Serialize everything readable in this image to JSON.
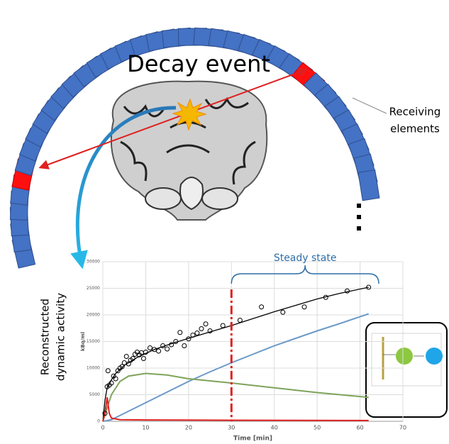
{
  "diagram": {
    "decay_label": "Decay event",
    "receiver_label": [
      "Receiving",
      "elements"
    ],
    "activity_label": [
      "Reconstructed",
      "dynamic activity"
    ]
  },
  "chart_data": {
    "type": "line",
    "steady_state_label": "Steady state",
    "steady_state_start": 30,
    "xlabel": "Time [min]",
    "ylabel": "kBq/ml",
    "xlim": [
      0,
      70
    ],
    "ylim": [
      0,
      30000
    ],
    "xticks": [
      0,
      10,
      20,
      30,
      40,
      50,
      60,
      70
    ],
    "yticks": [
      0,
      5000,
      10000,
      15000,
      20000,
      25000,
      30000
    ],
    "grid": true,
    "series": [
      {
        "color": "#000000",
        "x": [
          0,
          0.5,
          1,
          2,
          3,
          5,
          8,
          12,
          16,
          20,
          25,
          30,
          35,
          40,
          45,
          50,
          55,
          62
        ],
        "values": [
          0,
          4000,
          6300,
          7800,
          9000,
          10500,
          12000,
          13500,
          14600,
          15600,
          16800,
          18000,
          19300,
          20600,
          21800,
          23000,
          24000,
          25200
        ]
      },
      {
        "color": "#6b9ac8",
        "x": [
          0,
          2,
          5,
          10,
          15,
          20,
          25,
          30,
          35,
          40,
          45,
          50,
          55,
          62
        ],
        "values": [
          0,
          300,
          1500,
          3500,
          5500,
          7500,
          9300,
          11000,
          12600,
          14200,
          15600,
          17000,
          18300,
          20200
        ]
      },
      {
        "color": "#7ea35a",
        "x": [
          0,
          1,
          2,
          4,
          6,
          10,
          15,
          20,
          30,
          40,
          50,
          62
        ],
        "values": [
          0,
          2500,
          5000,
          7500,
          8500,
          9000,
          8700,
          8000,
          7200,
          6300,
          5400,
          4500
        ]
      },
      {
        "color": "#e02020",
        "x": [
          0,
          0.5,
          1,
          1.5,
          2,
          4,
          10,
          30,
          62
        ],
        "values": [
          0,
          1500,
          4500,
          1500,
          600,
          300,
          250,
          200,
          150
        ]
      }
    ],
    "points": {
      "color": "#000000",
      "x": [
        0.5,
        1,
        1.2,
        1.5,
        2,
        2.5,
        3,
        3.5,
        4,
        4.5,
        5,
        5.5,
        6,
        6.5,
        7,
        7.5,
        8,
        8.5,
        9,
        9.5,
        10,
        11,
        12,
        13,
        14,
        15,
        16,
        17,
        18,
        19,
        20,
        21,
        22,
        23,
        24,
        25,
        28,
        32,
        37,
        42,
        47,
        52,
        57,
        62
      ],
      "values": [
        1500,
        6500,
        9500,
        6800,
        7200,
        8500,
        8000,
        9500,
        10000,
        10300,
        11000,
        12200,
        10800,
        11500,
        11800,
        12600,
        13000,
        12500,
        12900,
        11800,
        13000,
        13800,
        13500,
        13200,
        14200,
        13600,
        14400,
        15000,
        16700,
        14200,
        15500,
        16200,
        16600,
        17400,
        18300,
        17000,
        18000,
        19000,
        21500,
        20500,
        21500,
        23300,
        24500,
        25200
      ]
    }
  }
}
